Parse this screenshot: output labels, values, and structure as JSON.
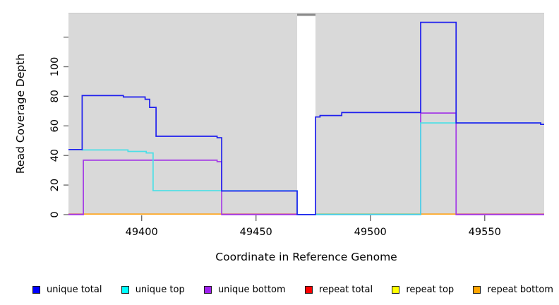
{
  "figure": {
    "x_axis_title": "Coordinate in Reference Genome",
    "y_axis_title": "Read Coverage Depth"
  },
  "axes": {
    "x_ticks": [
      {
        "value": 49400,
        "label": "49400"
      },
      {
        "value": 49450,
        "label": "49450"
      },
      {
        "value": 49500,
        "label": "49500"
      },
      {
        "value": 49550,
        "label": "49550"
      }
    ],
    "y_ticks": [
      {
        "value": 0,
        "label": "0"
      },
      {
        "value": 20,
        "label": "20"
      },
      {
        "value": 40,
        "label": "40"
      },
      {
        "value": 60,
        "label": "60"
      },
      {
        "value": 80,
        "label": "80"
      },
      {
        "value": 100,
        "label": "100"
      },
      {
        "value": 120,
        "label": ""
      }
    ],
    "x_range": [
      49368,
      49576
    ],
    "y_range": [
      0,
      136
    ]
  },
  "legend": [
    {
      "label": "unique total",
      "color": "#0000ff"
    },
    {
      "label": "unique top",
      "color": "#00ffff"
    },
    {
      "label": "unique bottom",
      "color": "#a020f0"
    },
    {
      "label": "repeat total",
      "color": "#ff0000"
    },
    {
      "label": "repeat top",
      "color": "#ffff00"
    },
    {
      "label": "repeat bottom",
      "color": "#ffa500"
    }
  ],
  "colors": {
    "plot_background": "#d9d9d9",
    "gap_fill": "#ffffff",
    "gap_top_bar": "#8a8a8a",
    "plot_top_edge": "#c6c6c6",
    "tick": "#6e6e6e",
    "unique_total_line": "#1f1fee",
    "unique_top_line": "#4cdfe6",
    "unique_bottom_line": "#a43ae6",
    "zero_pink": "#d56380",
    "zero_green": "#8cc98c",
    "zero_orange": "#ffa012"
  },
  "chart_data": {
    "type": "line",
    "style": "step-after",
    "title": "",
    "xlabel": "Coordinate in Reference Genome",
    "ylabel": "Read Coverage Depth",
    "xlim": [
      49368,
      49576
    ],
    "ylim": [
      0,
      136
    ],
    "grid": false,
    "legend_position": "bottom",
    "no_data_gap": {
      "from": 49468,
      "to": 49476
    },
    "series": [
      {
        "name": "unique total",
        "color_key": "unique_total_line",
        "points": [
          [
            49368,
            44
          ],
          [
            49374,
            80.5
          ],
          [
            49392,
            79.5
          ],
          [
            49401.5,
            78
          ],
          [
            49403.5,
            72.5
          ],
          [
            49406.3,
            53
          ],
          [
            49433,
            52
          ],
          [
            49435,
            16
          ],
          [
            49468,
            0
          ],
          [
            49476,
            66
          ],
          [
            49478,
            67
          ],
          [
            49487.5,
            69
          ],
          [
            49522,
            130
          ],
          [
            49537.5,
            62
          ],
          [
            49574.5,
            61
          ],
          [
            49576,
            61
          ]
        ]
      },
      {
        "name": "unique top",
        "color_key": "unique_top_line",
        "points": [
          [
            49368,
            44
          ],
          [
            49374,
            43.7
          ],
          [
            49394,
            42.7
          ],
          [
            49402,
            41.7
          ],
          [
            49405,
            16.2
          ],
          [
            49468,
            0
          ],
          [
            49522,
            62
          ],
          [
            49574.5,
            61
          ],
          [
            49576,
            61
          ]
        ]
      },
      {
        "name": "unique bottom",
        "color_key": "unique_bottom_line",
        "points": [
          [
            49368,
            0
          ],
          [
            49374.5,
            36.8
          ],
          [
            49433,
            35.8
          ],
          [
            49435,
            0
          ],
          [
            49522,
            68.7
          ],
          [
            49537.5,
            0
          ],
          [
            49576,
            0
          ]
        ]
      },
      {
        "name": "repeat total",
        "color_key": "zero_pink",
        "note": "coverage 0 across entire range",
        "points": [
          [
            49368,
            0
          ],
          [
            49576,
            0
          ]
        ]
      },
      {
        "name": "repeat top",
        "color_key": "zero_green",
        "note": "coverage 0 across entire range",
        "points": [
          [
            49368,
            0
          ],
          [
            49576,
            0
          ]
        ]
      },
      {
        "name": "repeat bottom",
        "color_key": "zero_orange",
        "note": "coverage 0 across entire range",
        "points": [
          [
            49368,
            0
          ],
          [
            49576,
            0
          ]
        ]
      }
    ],
    "zero_line_segments": [
      {
        "from": 49368,
        "to": 49374.5,
        "color_key": "zero_pink"
      },
      {
        "from": 49374.5,
        "to": 49435.3,
        "color_key": "zero_orange"
      },
      {
        "from": 49435.3,
        "to": 49468,
        "color_key": "zero_pink"
      },
      {
        "from": 49476,
        "to": 49522,
        "color_key": "zero_green"
      },
      {
        "from": 49522,
        "to": 49538,
        "color_key": "zero_orange"
      },
      {
        "from": 49538,
        "to": 49576,
        "color_key": "zero_pink"
      }
    ]
  }
}
